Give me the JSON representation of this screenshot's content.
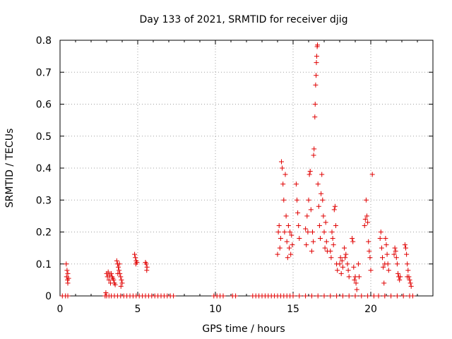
{
  "chart_data": {
    "type": "scatter",
    "title": "Day 133 of 2021, SRMTID for receiver djig",
    "xlabel": "GPS time / hours",
    "ylabel": "SRMTID / TECUs",
    "xlim": [
      0,
      24
    ],
    "ylim": [
      0,
      0.8
    ],
    "xticks": [
      0,
      5,
      10,
      15,
      20
    ],
    "yticks": [
      0,
      0.1,
      0.2,
      0.3,
      0.4,
      0.5,
      0.6,
      0.7,
      0.8
    ],
    "grid": true,
    "marker": "plus",
    "color": "#e00000",
    "series": [
      {
        "name": "SRMTID",
        "points": [
          [
            0.15,
            0
          ],
          [
            0.35,
            0
          ],
          [
            0.5,
            0
          ],
          [
            0.4,
            0.1
          ],
          [
            0.45,
            0.08
          ],
          [
            0.5,
            0.07
          ],
          [
            0.42,
            0.06
          ],
          [
            0.48,
            0.05
          ],
          [
            0.5,
            0.04
          ],
          [
            0.55,
            0.055
          ],
          [
            2.9,
            0
          ],
          [
            3.0,
            0
          ],
          [
            3.15,
            0
          ],
          [
            3.3,
            0
          ],
          [
            3.5,
            0
          ],
          [
            3.7,
            0
          ],
          [
            3.9,
            0
          ],
          [
            4.1,
            0
          ],
          [
            4.3,
            0
          ],
          [
            4.5,
            0
          ],
          [
            4.7,
            0
          ],
          [
            4.9,
            0
          ],
          [
            5.1,
            0
          ],
          [
            5.3,
            0
          ],
          [
            5.5,
            0
          ],
          [
            5.7,
            0
          ],
          [
            5.9,
            0
          ],
          [
            6.1,
            0
          ],
          [
            6.3,
            0
          ],
          [
            6.5,
            0
          ],
          [
            6.7,
            0
          ],
          [
            6.9,
            0
          ],
          [
            7.1,
            0
          ],
          [
            7.3,
            0
          ],
          [
            2.95,
            0.01
          ],
          [
            3.0,
            0.07
          ],
          [
            3.05,
            0.06
          ],
          [
            3.1,
            0.075
          ],
          [
            3.15,
            0.05
          ],
          [
            3.2,
            0.065
          ],
          [
            3.25,
            0.04
          ],
          [
            3.3,
            0.07
          ],
          [
            3.35,
            0.06
          ],
          [
            3.4,
            0.055
          ],
          [
            3.45,
            0.05
          ],
          [
            3.5,
            0.04
          ],
          [
            3.55,
            0.035
          ],
          [
            3.65,
            0.11
          ],
          [
            3.7,
            0.1
          ],
          [
            3.75,
            0.09
          ],
          [
            3.8,
            0.08
          ],
          [
            3.85,
            0.07
          ],
          [
            3.9,
            0.06
          ],
          [
            3.95,
            0.05
          ],
          [
            4.0,
            0.04
          ],
          [
            3.72,
            0.07
          ],
          [
            3.82,
            0.1
          ],
          [
            3.92,
            0.03
          ],
          [
            4.8,
            0.13
          ],
          [
            4.85,
            0.12
          ],
          [
            4.9,
            0.11
          ],
          [
            4.95,
            0.105
          ],
          [
            4.88,
            0.1
          ],
          [
            5.5,
            0.105
          ],
          [
            5.55,
            0.1
          ],
          [
            5.6,
            0.09
          ],
          [
            5.58,
            0.08
          ],
          [
            9.9,
            0
          ],
          [
            10.1,
            0
          ],
          [
            10.3,
            0
          ],
          [
            10.5,
            0
          ],
          [
            11.1,
            0
          ],
          [
            11.3,
            0
          ],
          [
            12.4,
            0
          ],
          [
            12.6,
            0
          ],
          [
            12.8,
            0
          ],
          [
            13.0,
            0
          ],
          [
            13.2,
            0
          ],
          [
            13.4,
            0
          ],
          [
            13.6,
            0
          ],
          [
            13.8,
            0
          ],
          [
            14.0,
            0
          ],
          [
            14.2,
            0
          ],
          [
            14.4,
            0
          ],
          [
            14.6,
            0
          ],
          [
            14.8,
            0
          ],
          [
            15.0,
            0
          ],
          [
            15.4,
            0
          ],
          [
            15.8,
            0
          ],
          [
            16.2,
            0
          ],
          [
            16.6,
            0
          ],
          [
            17.0,
            0
          ],
          [
            17.4,
            0
          ],
          [
            17.8,
            0
          ],
          [
            18.2,
            0
          ],
          [
            18.6,
            0
          ],
          [
            19.0,
            0
          ],
          [
            19.4,
            0
          ],
          [
            19.8,
            0
          ],
          [
            20.2,
            0
          ],
          [
            20.5,
            0
          ],
          [
            20.9,
            0
          ],
          [
            21.3,
            0
          ],
          [
            21.7,
            0
          ],
          [
            22.1,
            0
          ],
          [
            22.5,
            0
          ],
          [
            22.7,
            0
          ],
          [
            14.0,
            0.13
          ],
          [
            14.05,
            0.2
          ],
          [
            14.1,
            0.22
          ],
          [
            14.15,
            0.15
          ],
          [
            14.2,
            0.18
          ],
          [
            14.25,
            0.42
          ],
          [
            14.3,
            0.4
          ],
          [
            14.35,
            0.35
          ],
          [
            14.4,
            0.3
          ],
          [
            14.45,
            0.2
          ],
          [
            14.5,
            0.38
          ],
          [
            14.55,
            0.25
          ],
          [
            14.6,
            0.17
          ],
          [
            14.65,
            0.12
          ],
          [
            14.7,
            0.22
          ],
          [
            14.75,
            0.15
          ],
          [
            14.8,
            0.2
          ],
          [
            14.85,
            0.13
          ],
          [
            14.9,
            0.19
          ],
          [
            14.95,
            0.16
          ],
          [
            15.2,
            0.35
          ],
          [
            15.25,
            0.3
          ],
          [
            15.3,
            0.26
          ],
          [
            15.35,
            0.22
          ],
          [
            15.4,
            0.18
          ],
          [
            15.8,
            0.21
          ],
          [
            15.85,
            0.16
          ],
          [
            15.9,
            0.25
          ],
          [
            15.95,
            0.2
          ],
          [
            16.0,
            0.3
          ],
          [
            16.05,
            0.38
          ],
          [
            16.1,
            0.39
          ],
          [
            16.15,
            0.27
          ],
          [
            16.2,
            0.14
          ],
          [
            16.25,
            0.2
          ],
          [
            16.3,
            0.17
          ],
          [
            16.32,
            0.44
          ],
          [
            16.35,
            0.46
          ],
          [
            16.4,
            0.56
          ],
          [
            16.42,
            0.6
          ],
          [
            16.45,
            0.66
          ],
          [
            16.48,
            0.69
          ],
          [
            16.5,
            0.73
          ],
          [
            16.52,
            0.75
          ],
          [
            16.55,
            0.78
          ],
          [
            16.57,
            0.785
          ],
          [
            16.6,
            0.35
          ],
          [
            16.65,
            0.28
          ],
          [
            16.7,
            0.22
          ],
          [
            16.75,
            0.18
          ],
          [
            16.8,
            0.32
          ],
          [
            16.85,
            0.38
          ],
          [
            16.9,
            0.3
          ],
          [
            16.95,
            0.25
          ],
          [
            17.0,
            0.2
          ],
          [
            17.05,
            0.15
          ],
          [
            17.1,
            0.23
          ],
          [
            17.15,
            0.17
          ],
          [
            17.2,
            0.14
          ],
          [
            17.4,
            0.14
          ],
          [
            17.45,
            0.12
          ],
          [
            17.5,
            0.2
          ],
          [
            17.55,
            0.18
          ],
          [
            17.6,
            0.16
          ],
          [
            17.65,
            0.27
          ],
          [
            17.7,
            0.28
          ],
          [
            17.75,
            0.22
          ],
          [
            17.8,
            0.1
          ],
          [
            17.85,
            0.08
          ],
          [
            18.0,
            0.1
          ],
          [
            18.05,
            0.12
          ],
          [
            18.1,
            0.07
          ],
          [
            18.15,
            0.11
          ],
          [
            18.2,
            0.09
          ],
          [
            18.3,
            0.15
          ],
          [
            18.35,
            0.12
          ],
          [
            18.4,
            0.13
          ],
          [
            18.5,
            0.1
          ],
          [
            18.55,
            0.08
          ],
          [
            18.6,
            0.06
          ],
          [
            18.8,
            0.18
          ],
          [
            18.85,
            0.17
          ],
          [
            18.9,
            0.09
          ],
          [
            18.95,
            0.05
          ],
          [
            19.0,
            0.06
          ],
          [
            19.05,
            0.04
          ],
          [
            19.1,
            0.02
          ],
          [
            19.2,
            0.1
          ],
          [
            19.25,
            0.06
          ],
          [
            19.6,
            0.22
          ],
          [
            19.65,
            0.24
          ],
          [
            19.7,
            0.3
          ],
          [
            19.75,
            0.25
          ],
          [
            19.8,
            0.23
          ],
          [
            19.85,
            0.17
          ],
          [
            19.9,
            0.14
          ],
          [
            19.95,
            0.12
          ],
          [
            20.0,
            0.08
          ],
          [
            20.1,
            0.38
          ],
          [
            20.6,
            0.18
          ],
          [
            20.65,
            0.2
          ],
          [
            20.7,
            0.15
          ],
          [
            20.75,
            0.12
          ],
          [
            20.8,
            0.09
          ],
          [
            20.85,
            0.04
          ],
          [
            20.9,
            0.1
          ],
          [
            20.95,
            0.18
          ],
          [
            21.0,
            0.16
          ],
          [
            21.05,
            0.13
          ],
          [
            21.1,
            0.1
          ],
          [
            21.15,
            0.08
          ],
          [
            21.5,
            0.13
          ],
          [
            21.55,
            0.15
          ],
          [
            21.6,
            0.14
          ],
          [
            21.65,
            0.12
          ],
          [
            21.7,
            0.1
          ],
          [
            21.75,
            0.07
          ],
          [
            21.8,
            0.06
          ],
          [
            21.85,
            0.05
          ],
          [
            21.9,
            0.06
          ],
          [
            22.2,
            0.16
          ],
          [
            22.25,
            0.15
          ],
          [
            22.3,
            0.13
          ],
          [
            22.35,
            0.1
          ],
          [
            22.4,
            0.08
          ],
          [
            22.45,
            0.06
          ],
          [
            22.5,
            0.05
          ],
          [
            22.55,
            0.04
          ],
          [
            22.6,
            0.03
          ],
          [
            22.35,
            0.06
          ]
        ]
      }
    ]
  }
}
